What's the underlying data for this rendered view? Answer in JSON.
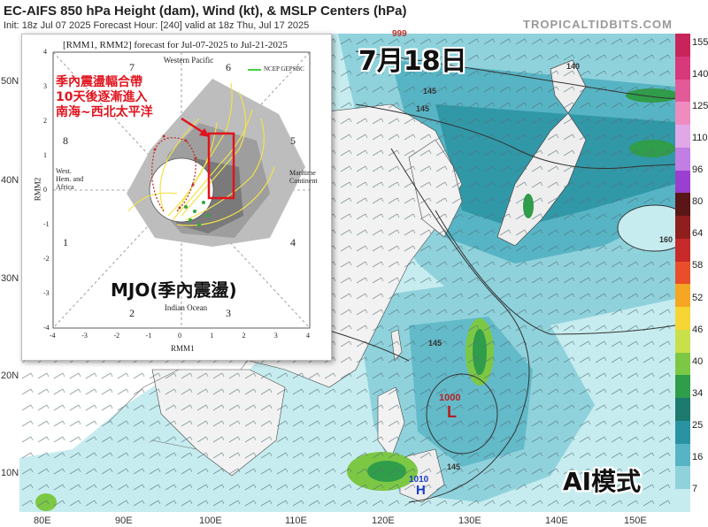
{
  "header": {
    "title": "EC-AIFS 850 hPa Height (dam), Wind (kt), & MSLP Centers (hPa)",
    "subtitle": "Init: 18z Jul 07 2025   Forecast Hour: [240]   valid at 18z Thu, Jul 17 2025",
    "brand": "TROPICALTIDBITS.COM"
  },
  "map": {
    "lat_labels": [
      "50N",
      "40N",
      "30N",
      "20N",
      "10N"
    ],
    "lon_labels": [
      "80E",
      "90E",
      "100E",
      "110E",
      "120E",
      "130E",
      "140E",
      "150E"
    ],
    "contour_labels": [
      "145",
      "145",
      "145",
      "160",
      "145",
      "140",
      "999"
    ],
    "pressure_centers": [
      {
        "letter": "L",
        "value": "1000",
        "color": "#b22222"
      },
      {
        "letter": "H",
        "value": "1010",
        "color": "#1a3cc8"
      }
    ],
    "date_label": "7月18日",
    "mode_label": "AI模式"
  },
  "colorbar": {
    "labels": [
      "155",
      "140",
      "125",
      "110",
      "96",
      "80",
      "64",
      "58",
      "52",
      "46",
      "40",
      "34",
      "25",
      "16",
      "7"
    ],
    "colors": [
      "#c8245a",
      "#d8397a",
      "#e35a98",
      "#ee8cc0",
      "#e0a8e6",
      "#c27ee2",
      "#9a3fd0",
      "#5a1616",
      "#8f1e1e",
      "#c62a2a",
      "#e84e2a",
      "#f5a623",
      "#f6d534",
      "#c8e04a",
      "#7cc844",
      "#2f9d4a",
      "#1d7a6e",
      "#2a93a3",
      "#57b4c4",
      "#8fd2dc",
      "#c6ecef"
    ]
  },
  "inset": {
    "title": "[RMM1, RMM2] forecast for Jul-07-2025 to Jul-21-2025",
    "legend": "NCEP GEPSBC",
    "phase_numbers": [
      "7",
      "6",
      "5",
      "4",
      "3",
      "2",
      "1",
      "8"
    ],
    "regions": {
      "top": "Western Pacific",
      "right": "Maritime Continent",
      "bottom": "Indian Ocean",
      "left": "West. Hem. and Africa"
    },
    "x_axis_label": "RMM1",
    "y_axis_label": "RMM2",
    "ticks_x": [
      "-4",
      "-3",
      "-2",
      "-1",
      "0",
      "1",
      "2",
      "3",
      "4"
    ],
    "ticks_y": [
      "4",
      "3",
      "2",
      "1",
      "0",
      "-1",
      "-2",
      "-3",
      "-4"
    ],
    "annotation": [
      "季內震盪輻合帶",
      "10天後逐漸進入",
      "南海~西北太平洋"
    ],
    "mjo_label": "MJO(季內震盪)"
  }
}
